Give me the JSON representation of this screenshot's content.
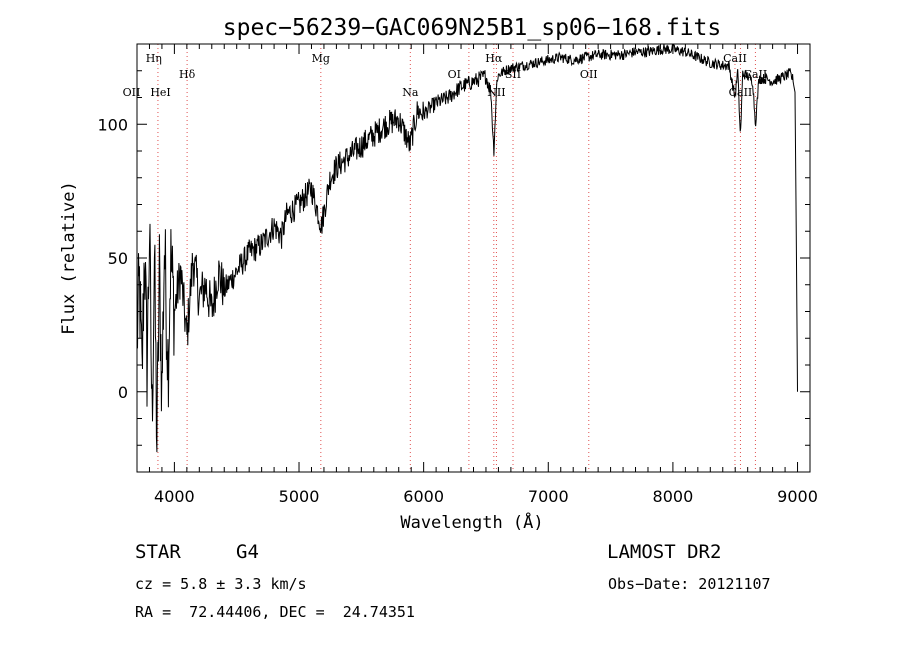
{
  "chart_data": {
    "type": "line",
    "title": "spec−56239−GAC069N25B1_sp06−168.fits",
    "xlabel": "Wavelength (Å)",
    "ylabel": "Flux (relative)",
    "xlim": [
      3700,
      9100
    ],
    "ylim": [
      -30,
      130
    ],
    "x_ticks": [
      4000,
      5000,
      6000,
      7000,
      8000,
      9000
    ],
    "y_ticks": [
      0,
      50,
      100
    ],
    "x": [
      3700,
      3720,
      3740,
      3760,
      3780,
      3800,
      3820,
      3840,
      3860,
      3880,
      3900,
      3920,
      3950,
      3970,
      4000,
      4050,
      4100,
      4150,
      4200,
      4250,
      4300,
      4350,
      4400,
      4500,
      4600,
      4700,
      4800,
      4860,
      4900,
      5000,
      5100,
      5180,
      5250,
      5300,
      5400,
      5500,
      5600,
      5700,
      5800,
      5890,
      5950,
      6000,
      6100,
      6200,
      6300,
      6400,
      6500,
      6540,
      6563,
      6590,
      6650,
      6700,
      6800,
      6900,
      7000,
      7100,
      7200,
      7300,
      7400,
      7500,
      7600,
      7700,
      7800,
      7900,
      8000,
      8100,
      8200,
      8300,
      8400,
      8450,
      8498,
      8520,
      8542,
      8560,
      8600,
      8640,
      8662,
      8690,
      8750,
      8800,
      8850,
      8900,
      8940,
      8960,
      8980,
      8990,
      9000
    ],
    "y": [
      20,
      40,
      5,
      55,
      10,
      60,
      -10,
      50,
      -20,
      45,
      0,
      55,
      10,
      50,
      30,
      45,
      20,
      50,
      35,
      40,
      30,
      45,
      38,
      45,
      52,
      55,
      62,
      58,
      66,
      70,
      76,
      62,
      80,
      84,
      88,
      92,
      96,
      100,
      102,
      92,
      105,
      104,
      108,
      110,
      114,
      116,
      118,
      112,
      90,
      118,
      120,
      121,
      122,
      123,
      124,
      125,
      124,
      125,
      126,
      126,
      126,
      127,
      127,
      128,
      128,
      127,
      125,
      123,
      122,
      122,
      110,
      120,
      95,
      119,
      118,
      116,
      100,
      117,
      117,
      116,
      117,
      118,
      119,
      117,
      112,
      60,
      0
    ],
    "line_markers": [
      {
        "label": "Hη",
        "wavelength": 3835,
        "row": 1,
        "anchor": "middle"
      },
      {
        "label": "Hδ",
        "wavelength": 4102,
        "row": 2,
        "anchor": "middle"
      },
      {
        "label": "OII",
        "wavelength": 3727,
        "row": 3,
        "anchor": "end"
      },
      {
        "label": "HeI",
        "wavelength": 3889,
        "row": 3,
        "anchor": "middle"
      },
      {
        "label": "Mg",
        "wavelength": 5175,
        "row": 1,
        "anchor": "middle"
      },
      {
        "label": "Na",
        "wavelength": 5893,
        "row": 3,
        "anchor": "middle"
      },
      {
        "label": "OI",
        "wavelength": 6300,
        "row": 2,
        "anchor": "end"
      },
      {
        "label": "Hα",
        "wavelength": 6563,
        "row": 1,
        "anchor": "middle"
      },
      {
        "label": "SII",
        "wavelength": 6717,
        "row": 2,
        "anchor": "middle"
      },
      {
        "label": "NII",
        "wavelength": 6584,
        "row": 3,
        "anchor": "middle"
      },
      {
        "label": "OII",
        "wavelength": 7325,
        "row": 2,
        "anchor": "middle"
      },
      {
        "label": "CaII",
        "wavelength": 8498,
        "row": 1,
        "anchor": "middle"
      },
      {
        "label": "CaII",
        "wavelength": 8542,
        "row": 3,
        "anchor": "middle"
      },
      {
        "label": "CaII",
        "wavelength": 8662,
        "row": 2,
        "anchor": "middle"
      }
    ],
    "extra_dotted_lines": [
      3700,
      3868,
      4102,
      5175,
      5893,
      6363,
      6563,
      6584,
      6717,
      7325,
      8498,
      8542,
      8662
    ],
    "colors": {
      "spectrum": "#000000",
      "markers": "#e05050",
      "axes": "#000000"
    }
  },
  "footer": {
    "object_type": "STAR",
    "subclass": "G4",
    "survey": "LAMOST DR2",
    "redshift": "cz = 5.8 ± 3.3 km/s",
    "obs_date": "Obs−Date: 20121107",
    "coords": "RA =  72.44406, DEC =  24.74351"
  }
}
